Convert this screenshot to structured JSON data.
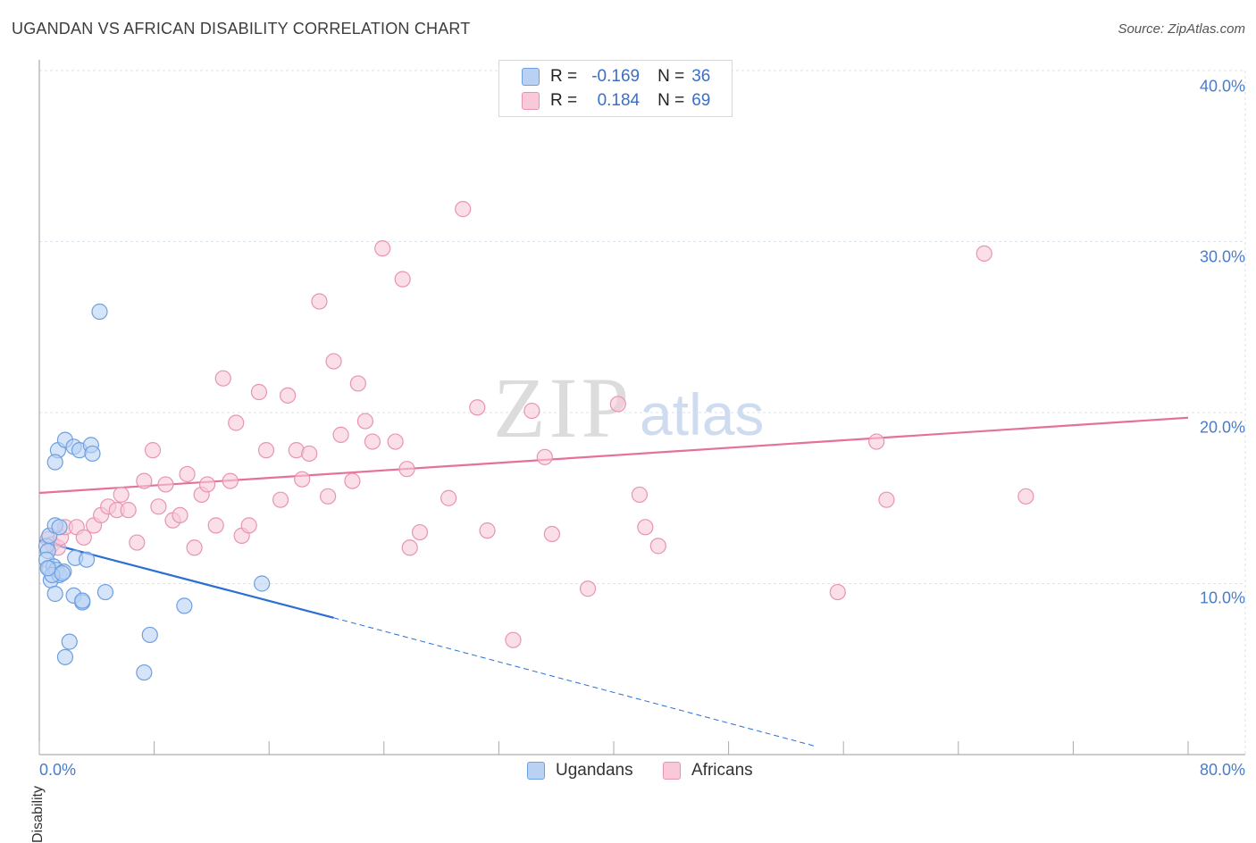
{
  "title": "UGANDAN VS AFRICAN DISABILITY CORRELATION CHART",
  "source": "Source: ZipAtlas.com",
  "watermark": {
    "zip": "ZIP",
    "atlas": "atlas"
  },
  "legend_top": [
    {
      "r_label": "R =",
      "r_value": "-0.169",
      "n_label": "N =",
      "n_value": "36"
    },
    {
      "r_label": "R =",
      "r_value": "0.184",
      "n_label": "N =",
      "n_value": "69"
    }
  ],
  "legend_bottom": [
    "Ugandans",
    "Africans"
  ],
  "colors": {
    "blue_fill": "#b9d2f3",
    "blue_stroke": "#6e9fe0",
    "blue_line": "#2a6fd1",
    "pink_fill": "#f9c9d8",
    "pink_stroke": "#e894b0",
    "pink_line": "#e5719a",
    "grid": "#dde3ea",
    "tick_text": "#4a7cc9"
  },
  "chart_data": {
    "type": "scatter",
    "title": "UGANDAN VS AFRICAN DISABILITY CORRELATION CHART",
    "xlabel": "",
    "ylabel": "Disability",
    "xlim": [
      0,
      80
    ],
    "ylim": [
      0,
      40
    ],
    "x_tick_labels": [
      "0.0%",
      "80.0%"
    ],
    "y_tick_labels": [
      "10.0%",
      "20.0%",
      "30.0%",
      "40.0%"
    ],
    "y_ticks": [
      10,
      20,
      30,
      40
    ],
    "grid": true,
    "legend_position": "top-center",
    "series": [
      {
        "name": "Ugandans",
        "color": "#6e9fe0",
        "R": -0.169,
        "N": 36,
        "trend": {
          "x0": 0,
          "y0": 12.5,
          "x1": 20.5,
          "y1": 8.0,
          "dashed_to_x": 54,
          "dashed_to_y": 0.5
        },
        "points": [
          [
            0.5,
            12.2
          ],
          [
            0.6,
            11.9
          ],
          [
            0.5,
            11.4
          ],
          [
            0.7,
            10.9
          ],
          [
            0.8,
            10.2
          ],
          [
            1.0,
            11.0
          ],
          [
            1.2,
            10.8
          ],
          [
            1.4,
            10.5
          ],
          [
            1.7,
            10.7
          ],
          [
            0.7,
            12.8
          ],
          [
            1.1,
            13.4
          ],
          [
            1.4,
            13.3
          ],
          [
            1.3,
            17.8
          ],
          [
            1.8,
            18.4
          ],
          [
            2.4,
            18.0
          ],
          [
            2.8,
            17.8
          ],
          [
            3.6,
            18.1
          ],
          [
            3.7,
            17.6
          ],
          [
            1.1,
            17.1
          ],
          [
            4.2,
            25.9
          ],
          [
            2.5,
            11.5
          ],
          [
            3.3,
            11.4
          ],
          [
            1.1,
            9.4
          ],
          [
            2.4,
            9.3
          ],
          [
            3.0,
            8.9
          ],
          [
            3.0,
            9.0
          ],
          [
            4.6,
            9.5
          ],
          [
            2.1,
            6.6
          ],
          [
            1.8,
            5.7
          ],
          [
            7.7,
            7.0
          ],
          [
            7.3,
            4.8
          ],
          [
            10.1,
            8.7
          ],
          [
            15.5,
            10.0
          ],
          [
            0.9,
            10.5
          ],
          [
            0.6,
            10.9
          ],
          [
            1.6,
            10.6
          ]
        ]
      },
      {
        "name": "Africans",
        "color": "#e894b0",
        "R": 0.184,
        "N": 69,
        "trend": {
          "x0": 0,
          "y0": 15.3,
          "x1": 80,
          "y1": 19.7
        },
        "points": [
          [
            0.6,
            12.6
          ],
          [
            0.9,
            12.3
          ],
          [
            1.3,
            12.1
          ],
          [
            1.5,
            12.7
          ],
          [
            1.8,
            13.3
          ],
          [
            2.6,
            13.3
          ],
          [
            3.1,
            12.7
          ],
          [
            3.8,
            13.4
          ],
          [
            4.3,
            14.0
          ],
          [
            4.8,
            14.5
          ],
          [
            5.4,
            14.3
          ],
          [
            5.7,
            15.2
          ],
          [
            6.2,
            14.3
          ],
          [
            6.8,
            12.4
          ],
          [
            7.3,
            16.0
          ],
          [
            7.9,
            17.8
          ],
          [
            8.3,
            14.5
          ],
          [
            8.8,
            15.8
          ],
          [
            9.3,
            13.7
          ],
          [
            9.8,
            14.0
          ],
          [
            10.3,
            16.4
          ],
          [
            10.8,
            12.1
          ],
          [
            11.3,
            15.2
          ],
          [
            11.7,
            15.8
          ],
          [
            12.3,
            13.4
          ],
          [
            12.8,
            22.0
          ],
          [
            13.3,
            16.0
          ],
          [
            13.7,
            19.4
          ],
          [
            14.1,
            12.8
          ],
          [
            14.6,
            13.4
          ],
          [
            15.3,
            21.2
          ],
          [
            15.8,
            17.8
          ],
          [
            16.8,
            14.9
          ],
          [
            17.3,
            21.0
          ],
          [
            17.9,
            17.8
          ],
          [
            18.3,
            16.1
          ],
          [
            18.8,
            17.6
          ],
          [
            19.5,
            26.5
          ],
          [
            20.1,
            15.1
          ],
          [
            20.5,
            23.0
          ],
          [
            21.0,
            18.7
          ],
          [
            21.8,
            16.0
          ],
          [
            22.2,
            21.7
          ],
          [
            22.7,
            19.5
          ],
          [
            23.2,
            18.3
          ],
          [
            23.9,
            29.6
          ],
          [
            24.8,
            18.3
          ],
          [
            25.3,
            27.8
          ],
          [
            25.6,
            16.7
          ],
          [
            25.8,
            12.1
          ],
          [
            26.5,
            13.0
          ],
          [
            28.5,
            15.0
          ],
          [
            29.5,
            31.9
          ],
          [
            30.5,
            20.3
          ],
          [
            31.2,
            13.1
          ],
          [
            33.0,
            6.7
          ],
          [
            34.3,
            20.1
          ],
          [
            35.2,
            17.4
          ],
          [
            35.7,
            12.9
          ],
          [
            38.2,
            9.7
          ],
          [
            40.3,
            20.5
          ],
          [
            41.8,
            15.2
          ],
          [
            42.2,
            13.3
          ],
          [
            43.1,
            12.2
          ],
          [
            55.6,
            9.5
          ],
          [
            58.3,
            18.3
          ],
          [
            59.0,
            14.9
          ],
          [
            65.8,
            29.3
          ],
          [
            68.7,
            15.1
          ]
        ]
      }
    ]
  }
}
